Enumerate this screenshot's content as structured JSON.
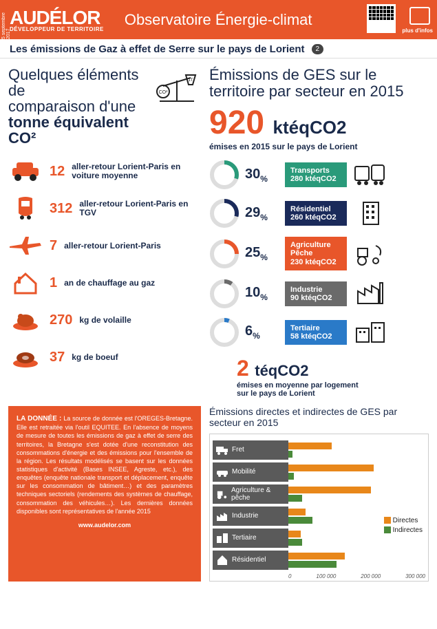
{
  "header": {
    "date": "5 septembre 2017",
    "logo": "AUDÉLOR",
    "logo_sub": "DÉVELOPPEUR DE TERRITOIRE",
    "title": "Observatoire Énergie-climat",
    "plus_infos": "plus d'infos"
  },
  "subheader": {
    "title": "Les émissions de Gaz à effet de Serre sur le pays de Lorient",
    "badge": "2"
  },
  "colors": {
    "orange": "#e8562a",
    "navy": "#1a2a4a",
    "teal": "#2a9a7a",
    "darkblue": "#1a2a5a",
    "tan": "#b88a4a",
    "grey": "#6a6a6a",
    "blue": "#2a7ac8",
    "bar_direct": "#e8871a",
    "bar_indirect": "#4a8a3a"
  },
  "comparison": {
    "title_line1": "Quelques éléments de",
    "title_line2": "comparaison d'une",
    "title_line3": "tonne équivalent",
    "title_line4": "CO²",
    "items": [
      {
        "icon": "car-icon",
        "num": "12",
        "text": "aller-retour Lorient-Paris en voiture moyenne"
      },
      {
        "icon": "train-icon",
        "num": "312",
        "text": "aller-retour Lorient-Paris en TGV"
      },
      {
        "icon": "plane-icon",
        "num": "7",
        "text": "aller-retour Lorient-Paris"
      },
      {
        "icon": "house-icon",
        "num": "1",
        "text": "an de chauffage au gaz"
      },
      {
        "icon": "poultry-icon",
        "num": "270",
        "text": "kg de volaille"
      },
      {
        "icon": "beef-icon",
        "num": "37",
        "text": "kg de boeuf"
      }
    ]
  },
  "sectors_block": {
    "title": "Émissions de GES sur le territoire par secteur en 2015",
    "big_num": "920",
    "big_unit": "ktéqCO2",
    "big_caption": "émises en 2015 sur le pays de Lorient",
    "sectors": [
      {
        "pct": 30,
        "label": "Transports",
        "sub": "280 ktéqCO2",
        "color": "#2a9a7a",
        "icon": "bus-icon"
      },
      {
        "pct": 29,
        "label": "Résidentiel",
        "sub": "260 ktéqCO2",
        "color": "#1a2a5a",
        "icon": "building-icon"
      },
      {
        "pct": 25,
        "label": "Agriculture Pêche",
        "sub": "230 ktéqCO2",
        "color": "#e8562a",
        "icon": "tractor-icon"
      },
      {
        "pct": 10,
        "label": "Industrie",
        "sub": "90 ktéqCO2",
        "color": "#6a6a6a",
        "icon": "factory-icon"
      },
      {
        "pct": 6,
        "label": "Tertiaire",
        "sub": "58 ktéqCO2",
        "color": "#2a7ac8",
        "icon": "offices-icon"
      }
    ],
    "footer_num": "2",
    "footer_unit": "téqCO2",
    "footer_caption_l1": "émises en moyenne par logement",
    "footer_caption_l2": "sur le pays de Lorient"
  },
  "data_box": {
    "heading": "LA DONNÉE :",
    "body": "La source de donnée est l'OREGES-Bretagne. Elle est retraitée via l'outil EQUITEE. En l'absence de moyens de mesure de toutes les émissions de gaz à effet de serre des territoires, la Bretagne s'est dotée d'une reconstitution des consommations d'énergie et des émissions pour l'ensemble de la région. Les résultats modélisés se basent sur les données statistiques d'activité (Bases INSEE, Agreste, etc.), des enquêtes (enquête nationale transport et déplacement, enquête sur les consommation de bâtiment…) et des paramètres techniques sectoriels (rendements des systèmes de chauffage, consommation des véhicules…). Les dernières données disponibles sont représentatives de l'année 2015",
    "url": "www.audelor.com"
  },
  "chart": {
    "title": "Émissions directes et indirectes de GES par secteur en 2015",
    "max": 300000,
    "rows": [
      {
        "label": "Fret",
        "icon": "truck-icon",
        "direct": 100000,
        "indirect": 10000
      },
      {
        "label": "Mobilité",
        "icon": "car2-icon",
        "direct": 195000,
        "indirect": 12000
      },
      {
        "label": "Agriculture & pêche",
        "icon": "tractor2-icon",
        "direct": 190000,
        "indirect": 32000
      },
      {
        "label": "Industrie",
        "icon": "factory2-icon",
        "direct": 40000,
        "indirect": 55000
      },
      {
        "label": "Tertiaire",
        "icon": "offices2-icon",
        "direct": 28000,
        "indirect": 32000
      },
      {
        "label": "Résidentiel",
        "icon": "house2-icon",
        "direct": 130000,
        "indirect": 110000
      }
    ],
    "axis": [
      "0",
      "100 000",
      "200 000",
      "300 000"
    ],
    "legend": [
      {
        "label": "Directes",
        "color": "#e8871a"
      },
      {
        "label": "Indirectes",
        "color": "#4a8a3a"
      }
    ]
  }
}
